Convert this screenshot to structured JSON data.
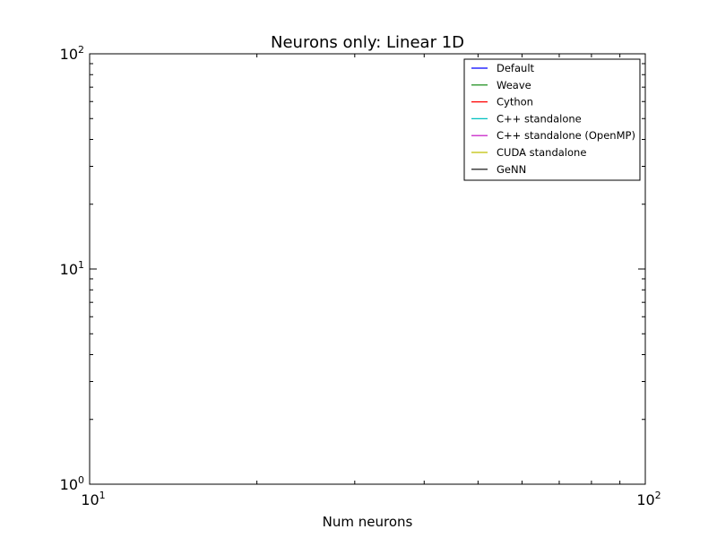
{
  "chart_data": {
    "type": "line",
    "title": "Neurons only: Linear 1D",
    "xlabel": "Num neurons",
    "ylabel": "",
    "xscale": "log",
    "yscale": "log",
    "xlim": [
      10,
      100
    ],
    "ylim": [
      1,
      100
    ],
    "x_ticks": [
      {
        "base": "10",
        "exp": "1",
        "value": 10
      },
      {
        "base": "10",
        "exp": "2",
        "value": 100
      }
    ],
    "y_ticks": [
      {
        "base": "10",
        "exp": "0",
        "value": 1
      },
      {
        "base": "10",
        "exp": "1",
        "value": 10
      },
      {
        "base": "10",
        "exp": "2",
        "value": 100
      }
    ],
    "grid": false,
    "legend_position": "top-right",
    "series": [
      {
        "name": "Default",
        "color": "#0000ff",
        "x": [],
        "y": []
      },
      {
        "name": "Weave",
        "color": "#008000",
        "x": [],
        "y": []
      },
      {
        "name": "Cython",
        "color": "#ff0000",
        "x": [],
        "y": []
      },
      {
        "name": "C++ standalone",
        "color": "#00bfbf",
        "x": [],
        "y": []
      },
      {
        "name": "C++ standalone (OpenMP)",
        "color": "#bf00bf",
        "x": [],
        "y": []
      },
      {
        "name": "CUDA standalone",
        "color": "#bfbf00",
        "x": [],
        "y": []
      },
      {
        "name": "GeNN",
        "color": "#000000",
        "x": [],
        "y": []
      }
    ]
  }
}
